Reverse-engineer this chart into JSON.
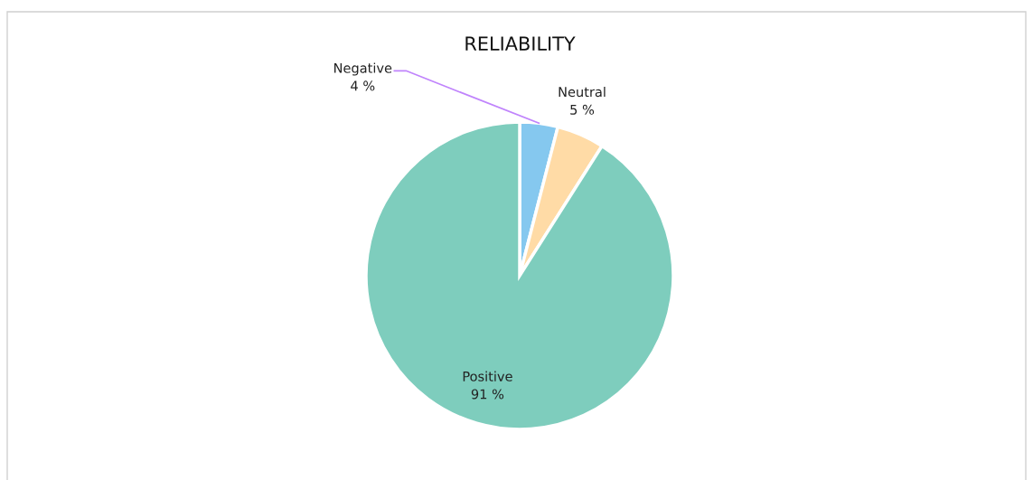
{
  "chart_data": {
    "type": "pie",
    "title": "RELIABILITY",
    "categories": [
      "Negative",
      "Neutral",
      "Positive"
    ],
    "values": [
      4,
      5,
      91
    ],
    "value_labels": [
      "4 %",
      "5 %",
      "91 %"
    ],
    "colors": [
      "#85c8ef",
      "#ffdba6",
      "#7ecdbd"
    ]
  }
}
